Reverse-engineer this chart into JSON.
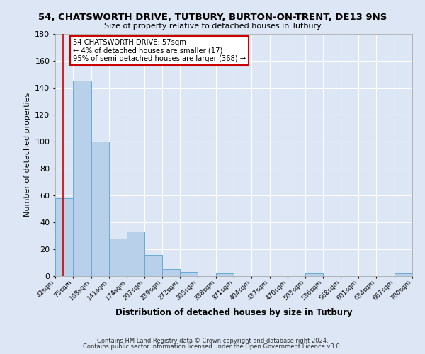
{
  "title": "54, CHATSWORTH DRIVE, TUTBURY, BURTON-ON-TRENT, DE13 9NS",
  "subtitle": "Size of property relative to detached houses in Tutbury",
  "xlabel": "Distribution of detached houses by size in Tutbury",
  "ylabel": "Number of detached properties",
  "footnote1": "Contains HM Land Registry data © Crown copyright and database right 2024.",
  "footnote2": "Contains public sector information licensed under the Open Government Licence v3.0.",
  "bin_labels": [
    "42sqm",
    "75sqm",
    "108sqm",
    "141sqm",
    "174sqm",
    "207sqm",
    "239sqm",
    "272sqm",
    "305sqm",
    "338sqm",
    "371sqm",
    "404sqm",
    "437sqm",
    "470sqm",
    "503sqm",
    "536sqm",
    "568sqm",
    "601sqm",
    "634sqm",
    "667sqm",
    "700sqm"
  ],
  "bar_heights": [
    58,
    145,
    100,
    28,
    33,
    16,
    5,
    3,
    0,
    2,
    0,
    0,
    0,
    0,
    2,
    0,
    0,
    0,
    0,
    2,
    0
  ],
  "bar_color": "#b8d0ea",
  "bar_edge_color": "#6aaad4",
  "property_line_x": 57,
  "property_line_color": "#cc0000",
  "annotation_text": "54 CHATSWORTH DRIVE: 57sqm\n← 4% of detached houses are smaller (17)\n95% of semi-detached houses are larger (368) →",
  "annotation_box_color": "#ffffff",
  "annotation_box_edge": "#cc0000",
  "ylim": [
    0,
    180
  ],
  "yticks": [
    0,
    20,
    40,
    60,
    80,
    100,
    120,
    140,
    160,
    180
  ],
  "bin_edges": [
    42,
    75,
    108,
    141,
    174,
    207,
    239,
    272,
    305,
    338,
    371,
    404,
    437,
    470,
    503,
    536,
    568,
    601,
    634,
    667,
    700
  ],
  "fig_bg_color": "#dce6f5",
  "plot_bg_color": "#dce6f5"
}
